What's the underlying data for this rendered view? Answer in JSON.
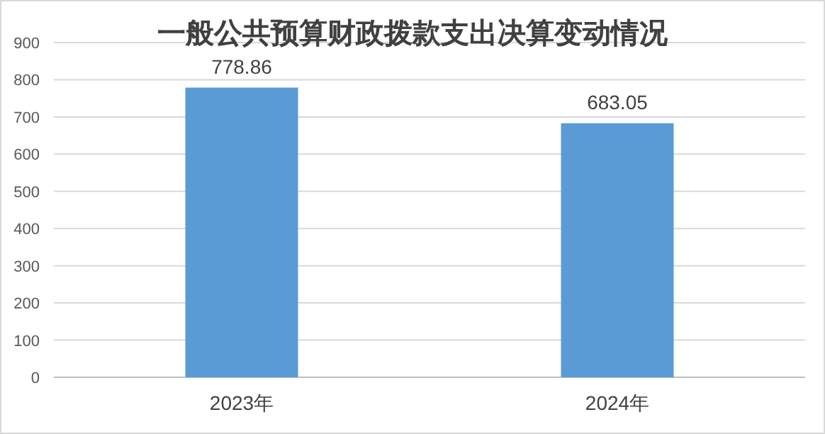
{
  "chart_data": {
    "type": "bar",
    "title": "一般公共预算财政拨款支出决算变动情况",
    "categories": [
      "2023年",
      "2024年"
    ],
    "values": [
      778.86,
      683.05
    ],
    "color": "#5b9bd5",
    "ylim": [
      0,
      900
    ],
    "yticks": [
      0,
      100,
      200,
      300,
      400,
      500,
      600,
      700,
      800,
      900
    ],
    "grid": "y",
    "data_labels": true
  }
}
